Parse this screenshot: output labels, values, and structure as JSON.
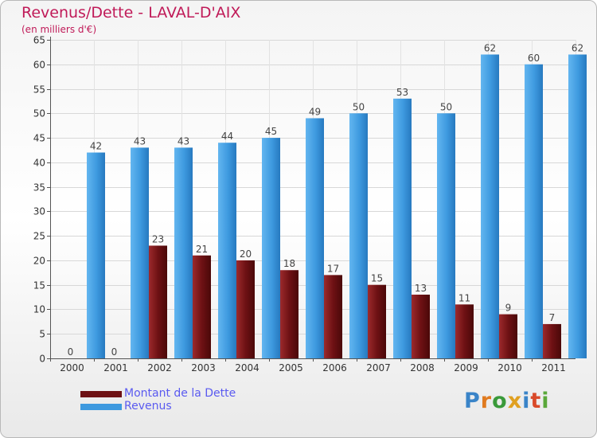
{
  "chart_data": {
    "type": "bar",
    "title": "Revenus/Dette - LAVAL-D'AIX",
    "subtitle": "(en milliers d'€)",
    "categories": [
      "2000",
      "2001",
      "2002",
      "2003",
      "2004",
      "2005",
      "2006",
      "2007",
      "2008",
      "2009",
      "2010",
      "2011"
    ],
    "series": [
      {
        "name": "Montant de la Dette",
        "color": "#7a1518",
        "values": [
          0,
          0,
          23,
          21,
          20,
          18,
          17,
          15,
          13,
          11,
          9,
          7
        ]
      },
      {
        "name": "Revenus",
        "color": "#3d99df",
        "values": [
          42,
          43,
          43,
          44,
          45,
          49,
          50,
          53,
          50,
          62,
          60,
          62
        ]
      }
    ],
    "ylim": [
      0,
      65
    ],
    "yticks": [
      0,
      5,
      10,
      15,
      20,
      25,
      30,
      35,
      40,
      45,
      50,
      55,
      60,
      65
    ],
    "grid": true,
    "legend_position": "bottom-left",
    "logo": "Proxiti"
  }
}
